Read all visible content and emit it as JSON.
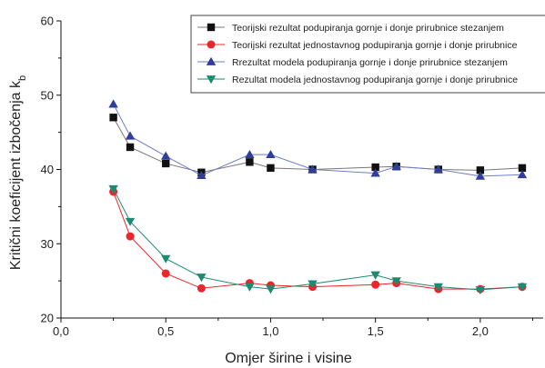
{
  "chart_data": {
    "type": "line",
    "xlabel": "Omjer širine i visine",
    "ylabel": "Kritični koeficijent izbočenja k",
    "ylabel_subscript": "b",
    "xlim": [
      0,
      2.3
    ],
    "ylim": [
      20,
      60
    ],
    "x_ticks": [
      "0,0",
      "0,5",
      "1,0",
      "1,5",
      "2,0"
    ],
    "y_ticks": [
      "20",
      "30",
      "40",
      "50",
      "60"
    ],
    "grid": false,
    "legend_position": "top-right",
    "series": [
      {
        "name": "Teorijski rezultat podupiranja gornje i donje prirubnice stezanjem",
        "marker": "square",
        "color": "#111111",
        "line_color": "#777777",
        "x": [
          0.25,
          0.33,
          0.5,
          0.67,
          0.9,
          1.0,
          1.2,
          1.5,
          1.6,
          1.8,
          2.0,
          2.2
        ],
        "y": [
          47,
          43,
          40.8,
          39.6,
          41,
          40.2,
          40,
          40.3,
          40.4,
          40,
          39.9,
          40.2
        ]
      },
      {
        "name": "Teorijski rezultat jednostavnog podupiranja gornje i donje prirubnice",
        "marker": "circle",
        "color": "#e8262b",
        "line_color": "#e8262b",
        "x": [
          0.25,
          0.33,
          0.5,
          0.67,
          0.9,
          1.0,
          1.2,
          1.5,
          1.6,
          1.8,
          2.0,
          2.2
        ],
        "y": [
          37,
          31,
          26,
          24,
          24.7,
          24.4,
          24.2,
          24.5,
          24.7,
          23.9,
          23.9,
          24.2
        ]
      },
      {
        "name": "Rrezultat modela podupiranja gornje i donje prirubnice stezanjem",
        "marker": "triangle-up",
        "color": "#2e3e9a",
        "line_color": "#6f7fc8",
        "x": [
          0.25,
          0.33,
          0.5,
          0.67,
          0.9,
          1.0,
          1.2,
          1.5,
          1.6,
          1.8,
          2.0,
          2.2
        ],
        "y": [
          48.8,
          44.5,
          41.8,
          39.2,
          42,
          42,
          40,
          39.5,
          40.4,
          40,
          39.1,
          39.3
        ]
      },
      {
        "name": "Rezultat modela jednostavnog podupiranja gornje i donje prirubnice",
        "marker": "triangle-down",
        "color": "#1e8a72",
        "line_color": "#1e8a72",
        "x": [
          0.25,
          0.33,
          0.5,
          0.67,
          0.9,
          1.0,
          1.2,
          1.5,
          1.6,
          1.8,
          2.0,
          2.2
        ],
        "y": [
          37.4,
          33,
          28,
          25.5,
          24.2,
          23.9,
          24.6,
          25.8,
          25,
          24.2,
          23.8,
          24.2
        ]
      }
    ]
  }
}
